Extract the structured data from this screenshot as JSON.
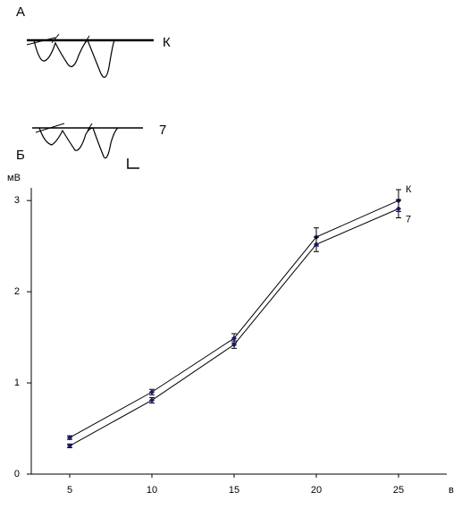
{
  "panels": {
    "a_label": "А",
    "b_label": "Б"
  },
  "chart_data": {
    "type": "line",
    "y_label": "мВ",
    "x_label": "в",
    "x": [
      5,
      10,
      15,
      20,
      25
    ],
    "series": [
      {
        "name": "К",
        "color": "#1a1a6e",
        "values": [
          0.4,
          0.9,
          1.49,
          2.6,
          3.0
        ],
        "errors": [
          0.02,
          0.03,
          0.05,
          0.1,
          0.12
        ]
      },
      {
        "name": "7",
        "color": "#1a1a6e",
        "values": [
          0.31,
          0.81,
          1.42,
          2.52,
          2.91
        ],
        "errors": [
          0.02,
          0.03,
          0.04,
          0.08,
          0.1
        ]
      }
    ],
    "xlim": [
      2.5,
      27.5
    ],
    "ylim": [
      0,
      3.1
    ],
    "xticks": [
      5,
      10,
      15,
      20,
      25
    ],
    "yticks": [
      0,
      1,
      2,
      3
    ]
  }
}
